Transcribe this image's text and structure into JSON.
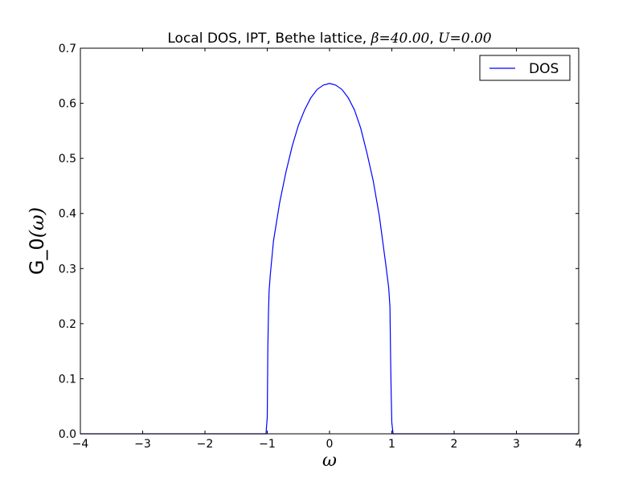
{
  "chart_data": {
    "type": "line",
    "title": {
      "prefix": "Local DOS, IPT, Bethe lattice, ",
      "beta_symbol": "β",
      "beta_value": "40.00",
      "u_symbol": "U",
      "u_value": "0.00"
    },
    "xlabel": "ω",
    "ylabel": {
      "text": "G_0",
      "arg": "(ω)"
    },
    "xlim": [
      -4,
      4
    ],
    "ylim": [
      0,
      0.7
    ],
    "xticks": [
      -4,
      -3,
      -2,
      -1,
      0,
      1,
      2,
      3,
      4
    ],
    "xtick_labels": [
      "−4",
      "−3",
      "−2",
      "−1",
      "0",
      "1",
      "2",
      "3",
      "4"
    ],
    "yticks": [
      0.0,
      0.1,
      0.2,
      0.3,
      0.4,
      0.5,
      0.6,
      0.7
    ],
    "ytick_labels": [
      "0.0",
      "0.1",
      "0.2",
      "0.3",
      "0.4",
      "0.5",
      "0.6",
      "0.7"
    ],
    "grid": false,
    "legend_position": "top-right",
    "series": [
      {
        "name": "DOS",
        "color": "#0000ff",
        "x": [
          -4.0,
          -1.05,
          -1.02,
          -1.0,
          -0.99,
          -0.98,
          -0.97,
          -0.95,
          -0.9,
          -0.8,
          -0.7,
          -0.6,
          -0.5,
          -0.4,
          -0.3,
          -0.2,
          -0.1,
          0.0,
          0.1,
          0.2,
          0.3,
          0.4,
          0.5,
          0.6,
          0.7,
          0.8,
          0.9,
          0.95,
          0.97,
          0.98,
          0.99,
          1.0,
          1.02,
          1.05,
          4.0
        ],
        "y": [
          0.0,
          0.0,
          0.0,
          0.03,
          0.16,
          0.22,
          0.26,
          0.29,
          0.35,
          0.42,
          0.475,
          0.522,
          0.56,
          0.588,
          0.61,
          0.625,
          0.633,
          0.636,
          0.633,
          0.625,
          0.61,
          0.588,
          0.555,
          0.51,
          0.46,
          0.395,
          0.31,
          0.265,
          0.23,
          0.14,
          0.07,
          0.02,
          0.0,
          0.0,
          0.0
        ]
      }
    ]
  }
}
